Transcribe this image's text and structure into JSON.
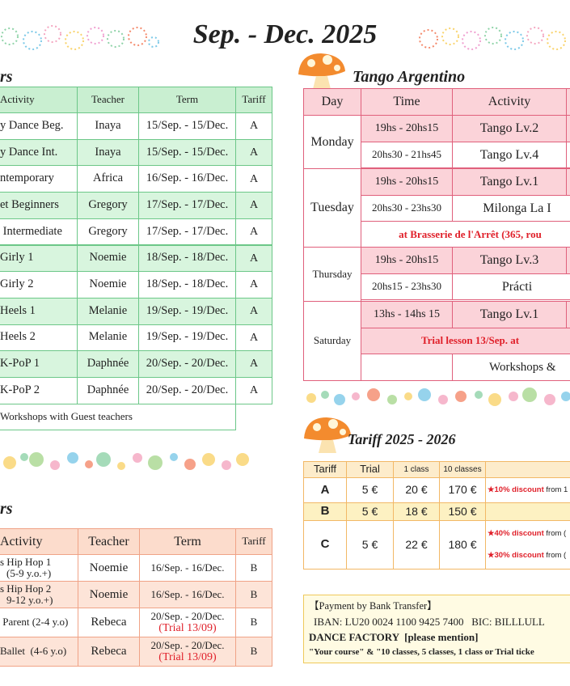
{
  "header": {
    "title": "Sep. - Dec. 2025"
  },
  "classes": {
    "heading": "rs",
    "columns": [
      "Activity",
      "Teacher",
      "Term",
      "Tariff"
    ],
    "rows": [
      [
        "y Dance Beg.",
        "Inaya",
        "15/Sep. - 15/Dec.",
        "A"
      ],
      [
        "y Dance Int.",
        "Inaya",
        "15/Sep. - 15/Dec.",
        "A"
      ],
      [
        "ntemporary",
        "Africa",
        "16/Sep. - 16/Dec.",
        "A"
      ],
      [
        "et Beginners",
        "Gregory",
        "17/Sep. - 17/Dec.",
        "A"
      ],
      [
        " Intermediate",
        "Gregory",
        "17/Sep. - 17/Dec.",
        "A"
      ],
      [
        "Girly 1",
        "Noemie",
        "18/Sep. - 18/Dec.",
        "A"
      ],
      [
        "Girly 2",
        "Noemie",
        "18/Sep. - 18/Dec.",
        "A"
      ],
      [
        "Heels 1",
        "Melanie",
        "19/Sep. - 19/Dec.",
        "A"
      ],
      [
        "Heels 2",
        "Melanie",
        "19/Sep. - 19/Dec.",
        "A"
      ],
      [
        "K-PoP 1",
        "Daphnée",
        "20/Sep. - 20/Dec.",
        "A"
      ],
      [
        "K-PoP 2",
        "Daphnée",
        "20/Sep. - 20/Dec.",
        "A"
      ]
    ],
    "footer": "Workshops with Guest teachers"
  },
  "kids": {
    "heading": "rs",
    "columns": [
      "Activity",
      "Teacher",
      "Term",
      "Tariff"
    ],
    "rows": [
      [
        [
          "s Hip Hop 1",
          "(5-9 y.o.+)"
        ],
        "Noemie",
        [
          "16/Sep. - 16/Dec."
        ],
        "B"
      ],
      [
        [
          "s Hip Hop 2",
          "9-12 y.o.+)"
        ],
        "Noemie",
        [
          "16/Sep. - 16/Dec."
        ],
        "B"
      ],
      [
        [
          " Parent (2-4 y.o)"
        ],
        "Rebeca",
        [
          "20/Sep. - 20/Dec.",
          "(Trial 13/09)"
        ],
        "B"
      ],
      [
        [
          "Ballet  (4-6 y.o)"
        ],
        "Rebeca",
        [
          "20/Sep. - 20/Dec.",
          "(Trial 13/09)"
        ],
        "B"
      ]
    ]
  },
  "tango": {
    "heading": "Tango Argentino",
    "columns": [
      "Day",
      "Time",
      "Activity"
    ],
    "days": [
      {
        "day": "Monday",
        "slots": [
          {
            "time": "19hs - 20hs15",
            "activity": "Tango Lv.2"
          },
          {
            "time": "20hs30 - 21hs45",
            "activity": "Tango Lv.4"
          }
        ]
      },
      {
        "day": "Tuesday",
        "slots": [
          {
            "time": "19hs - 20hs15",
            "activity": "Tango Lv.1"
          },
          {
            "time": "20hs30 - 23hs30",
            "activity": "Milonga La I"
          }
        ],
        "note": "at Brasserie de l'Arrêt (365, rou"
      },
      {
        "day": "Thursday",
        "slots": [
          {
            "time": "19hs - 20hs15",
            "activity": "Tango Lv.3"
          },
          {
            "time": "20hs15 - 23hs30",
            "activity": "Prácti"
          }
        ]
      },
      {
        "day": "Saturday",
        "slots": [
          {
            "time": "13hs - 14hs 15",
            "activity": "Tango Lv.1"
          }
        ],
        "note": "Trial lesson 13/Sep. at",
        "extra": "Workshops &"
      }
    ]
  },
  "tariff": {
    "heading": "Tariff 2025 - 2026",
    "columns": [
      "Tariff",
      "Trial",
      "1 class",
      "10 classes"
    ],
    "rows": [
      {
        "name": "A",
        "prices": [
          "5 €",
          "20 €",
          "170 €"
        ],
        "notes": [
          {
            "highlight": "★10% discount",
            "rest": " from 1"
          }
        ]
      },
      {
        "name": "B",
        "prices": [
          "5 €",
          "18 €",
          "150 €"
        ],
        "notes": []
      },
      {
        "name": "C",
        "prices": [
          "5 €",
          "22 €",
          "180 €"
        ],
        "notes": [
          {
            "highlight": "★40% discount",
            "rest": " from ("
          },
          {
            "highlight": "★30% discount",
            "rest": " from ("
          }
        ]
      }
    ]
  },
  "payment": {
    "title": "【Payment by Bank Transfer】",
    "iban": "IBAN: LU20 0024 1100 9425 7400   BIC: BILLLULL",
    "account": "DANCE FACTORY  [please mention]",
    "reference": "\"Your course\" & \"10 classes, 5 classes, 1 class or Trial ticke"
  }
}
